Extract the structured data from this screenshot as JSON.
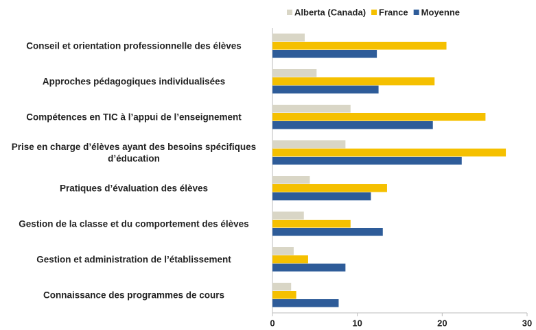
{
  "chart_data": {
    "type": "hbar",
    "categories": [
      "Conseil et orientation professionnelle des élèves",
      "Approches pédagogiques individualisées",
      "Compétences en TIC à l’appui de l’enseignement",
      "Prise en charge d’élèves ayant des besoins spécifiques d’éducation",
      "Pratiques d’évaluation des élèves",
      "Gestion de la classe et du comportement des élèves",
      "Gestion et administration de l’établissement",
      "Connaissance des programmes de cours"
    ],
    "series": [
      {
        "name": "Alberta (Canada)",
        "color": "#d9d6c6",
        "values": [
          3.8,
          5.2,
          9.2,
          8.6,
          4.4,
          3.7,
          2.5,
          2.2
        ]
      },
      {
        "name": "France",
        "color": "#f5c000",
        "values": [
          20.5,
          19.1,
          25.1,
          27.5,
          13.5,
          9.2,
          4.2,
          2.8
        ]
      },
      {
        "name": "Moyenne",
        "color": "#2e5c99",
        "values": [
          12.3,
          12.5,
          18.9,
          22.3,
          11.6,
          13.0,
          8.6,
          7.8
        ]
      }
    ],
    "xlim": [
      0,
      30
    ],
    "xticks": [
      0,
      10,
      20,
      30
    ],
    "grid": false,
    "legend": "top-right"
  }
}
